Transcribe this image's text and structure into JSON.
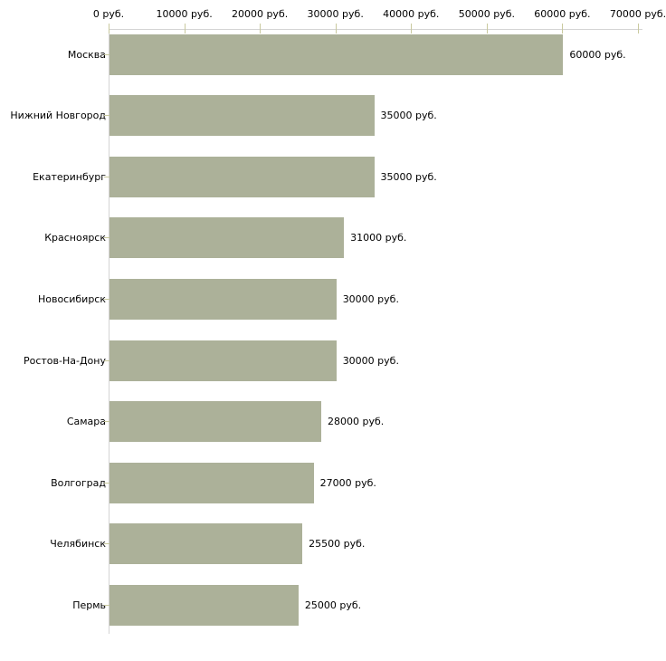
{
  "chart_data": {
    "type": "bar",
    "orientation": "horizontal",
    "title": "",
    "xlabel": "",
    "ylabel": "",
    "grid": false,
    "legend": false,
    "categories": [
      "Москва",
      "Нижний Новгород",
      "Екатеринбург",
      "Красноярск",
      "Новосибирск",
      "Ростов-На-Дону",
      "Самара",
      "Волгоград",
      "Челябинск",
      "Пермь"
    ],
    "values": [
      60000,
      35000,
      35000,
      31000,
      30000,
      30000,
      28000,
      27000,
      25500,
      25000
    ],
    "value_labels": [
      "60000 руб.",
      "35000 руб.",
      "35000 руб.",
      "31000 руб.",
      "30000 руб.",
      "30000 руб.",
      "28000 руб.",
      "27000 руб.",
      "25500 руб.",
      "25000 руб."
    ],
    "x_axis": {
      "position": "top",
      "min": 0,
      "max": 70000,
      "ticks": [
        0,
        10000,
        20000,
        30000,
        40000,
        50000,
        60000,
        70000
      ],
      "tick_labels": [
        "0 руб.",
        "10000 руб.",
        "20000 руб.",
        "30000 руб.",
        "40000 руб.",
        "50000 руб.",
        "60000 руб.",
        "70000 руб."
      ],
      "unit": "руб."
    },
    "colors": {
      "bar_fill": "#acb199",
      "axis_line": "#d4d4d4",
      "tick_mark": "#c9c99e",
      "label_text": "#000000",
      "background": "#ffffff"
    }
  }
}
